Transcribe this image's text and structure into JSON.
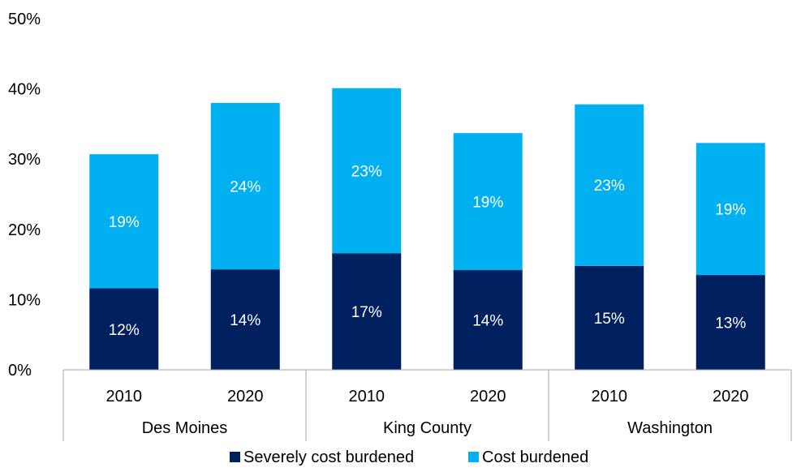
{
  "chart_data": {
    "type": "bar",
    "stacked": true,
    "groups": [
      "Des Moines",
      "King County",
      "Washington"
    ],
    "categories": [
      "2010",
      "2020",
      "2010",
      "2020",
      "2010",
      "2020"
    ],
    "series": [
      {
        "name": "Severely cost burdened",
        "color": "#002060",
        "values": [
          11.6,
          14.3,
          16.6,
          14.2,
          14.8,
          13.5
        ],
        "labels": [
          "12%",
          "14%",
          "17%",
          "14%",
          "15%",
          "13%"
        ]
      },
      {
        "name": "Cost burdened",
        "color": "#00B0F0",
        "values": [
          19.1,
          23.7,
          23.5,
          19.5,
          23.0,
          18.8
        ],
        "labels": [
          "19%",
          "24%",
          "23%",
          "19%",
          "23%",
          "19%"
        ]
      }
    ],
    "yticks": [
      "0%",
      "10%",
      "20%",
      "30%",
      "40%",
      "50%"
    ],
    "ylim": [
      0,
      50
    ],
    "grid": false,
    "legend_position": "bottom"
  }
}
